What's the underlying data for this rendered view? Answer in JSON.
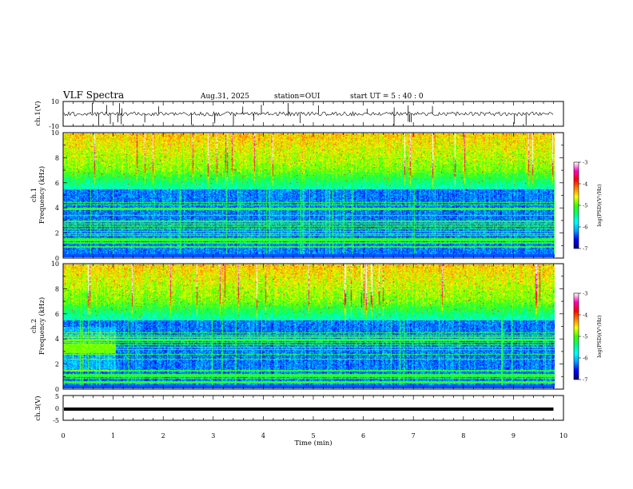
{
  "header": {
    "title": "VLF Spectra",
    "date": "Aug.31, 2025",
    "station": "station=OUI",
    "start": "start  UT =  5 : 40 : 0"
  },
  "chart_data": [
    {
      "type": "line",
      "name": "ch1-waveform",
      "ylabel": "ch.1(V)",
      "ylim": [
        -10,
        10
      ],
      "y_tick_labels": [
        "10",
        "-10"
      ],
      "xlim": [
        0,
        10
      ]
    },
    {
      "type": "heatmap",
      "name": "ch1-spectrogram",
      "ylabel": "ch.1\nFrequency (kHz)",
      "ylim": [
        0,
        10
      ],
      "y_tick_labels": [
        "0",
        "2",
        "4",
        "6",
        "8",
        "10"
      ],
      "xlim": [
        0,
        10
      ],
      "colorbar": {
        "label": "log(PSD)(V²/Hz)",
        "range": [
          -7,
          -3
        ],
        "tick_labels": [
          "-3",
          "-4",
          "-5",
          "-6",
          "-7"
        ],
        "colormap": [
          "#000080",
          "#0000ff",
          "#00a0ff",
          "#00ffff",
          "#00ff80",
          "#40ff00",
          "#ffff00",
          "#ff8000",
          "#ff0000",
          "#ff00c0",
          "#ffffff"
        ]
      }
    },
    {
      "type": "heatmap",
      "name": "ch2-spectrogram",
      "ylabel": "ch.2\nFrequency (kHz)",
      "ylim": [
        0,
        10
      ],
      "y_tick_labels": [
        "0",
        "2",
        "4",
        "6",
        "8",
        "10"
      ],
      "xlim": [
        0,
        10
      ],
      "colorbar": {
        "label": "log(PSD)(V²/Hz)",
        "range": [
          -7,
          -3
        ],
        "tick_labels": [
          "-3",
          "-4",
          "-5",
          "-6",
          "-7"
        ],
        "colormap": [
          "#000080",
          "#0000ff",
          "#00a0ff",
          "#00ffff",
          "#00ff80",
          "#40ff00",
          "#ffff00",
          "#ff8000",
          "#ff0000",
          "#ff00c0",
          "#ffffff"
        ]
      }
    },
    {
      "type": "line",
      "name": "ch3-waveform",
      "ylabel": "ch.3(V)",
      "ylim": [
        -5,
        5
      ],
      "y_tick_labels": [
        "5",
        "0",
        "-5"
      ],
      "xlim": [
        0,
        10
      ],
      "x": [
        0,
        9.8
      ],
      "y": [
        -0.5,
        -0.5
      ],
      "xlabel": "Time  (min)",
      "x_tick_labels": [
        "0",
        "1",
        "2",
        "3",
        "4",
        "5",
        "6",
        "7",
        "8",
        "9",
        "10"
      ]
    }
  ]
}
